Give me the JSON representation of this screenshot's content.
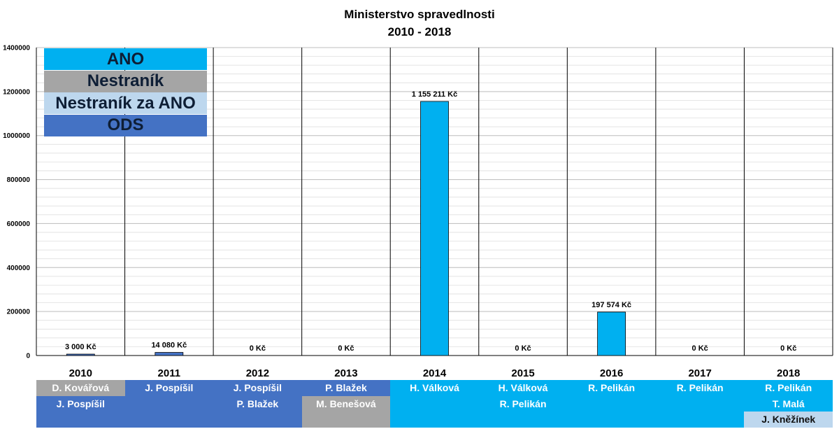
{
  "title": [
    "Ministerstvo spravedlnosti",
    "2010 - 2018"
  ],
  "colors": {
    "ANO": "#00b0f0",
    "Nestranik": "#a5a5a5",
    "NestranikZaANO": "#bdd7ee",
    "ODS": "#4472c4",
    "legend_text": "#0e1e35",
    "grid": "#d9d9d9"
  },
  "legend": [
    {
      "label": "ANO",
      "party": "ANO"
    },
    {
      "label": "Nestraník",
      "party": "Nestranik"
    },
    {
      "label": "Nestraník za ANO",
      "party": "NestranikZaANO"
    },
    {
      "label": "ODS",
      "party": "ODS"
    }
  ],
  "chart_data": {
    "type": "bar",
    "categories": [
      "2010",
      "2011",
      "2012",
      "2013",
      "2014",
      "2015",
      "2016",
      "2017",
      "2018"
    ],
    "values": [
      3000,
      14080,
      0,
      0,
      1155211,
      0,
      197574,
      0,
      0
    ],
    "data_labels": [
      "3 000 Kč",
      "14 080 Kč",
      "0 Kč",
      "0 Kč",
      "1 155 211 Kč",
      "0 Kč",
      "197 574 Kč",
      "0 Kč",
      "0 Kč"
    ],
    "bar_parties": [
      "ODS",
      "ODS",
      "ODS",
      "ODS",
      "ANO",
      "ANO",
      "ANO",
      "ANO",
      "ANO"
    ],
    "yticks": [
      "0",
      "200000",
      "400000",
      "600000",
      "800000",
      "1000000",
      "1200000",
      "1400000"
    ],
    "ylim": [
      0,
      1400000
    ],
    "grid": true,
    "legend_position": "top-left"
  },
  "ministers": [
    [
      {
        "name": "D. Kovářová",
        "party": "Nestranik"
      },
      {
        "name": "J. Pospíšil",
        "party": "ODS"
      }
    ],
    [
      {
        "name": "J. Pospíšil",
        "party": "ODS"
      }
    ],
    [
      {
        "name": "J. Pospíšil",
        "party": "ODS"
      },
      {
        "name": "P. Blažek",
        "party": "ODS"
      }
    ],
    [
      {
        "name": "P. Blažek",
        "party": "ODS"
      },
      {
        "name": "M. Benešová",
        "party": "Nestranik"
      }
    ],
    [
      {
        "name": "H. Válková",
        "party": "ANO"
      }
    ],
    [
      {
        "name": "H. Válková",
        "party": "ANO"
      },
      {
        "name": "R. Pelikán",
        "party": "ANO"
      }
    ],
    [
      {
        "name": "R. Pelikán",
        "party": "ANO"
      }
    ],
    [
      {
        "name": "R. Pelikán",
        "party": "ANO"
      }
    ],
    [
      {
        "name": "R. Pelikán",
        "party": "ANO"
      },
      {
        "name": "T. Malá",
        "party": "ANO"
      },
      {
        "name": "J. Kněžínek",
        "party": "NestranikZaANO"
      }
    ]
  ]
}
